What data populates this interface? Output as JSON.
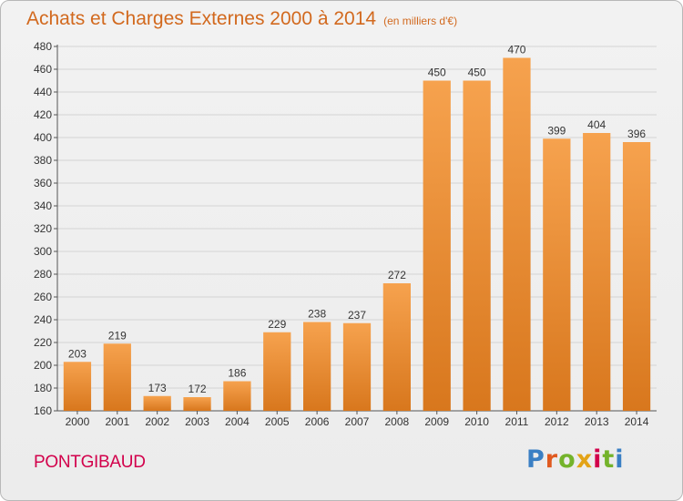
{
  "header": {
    "title": "Achats et Charges Externes 2000 à 2014",
    "subtitle": "(en milliers d'€)"
  },
  "footer": {
    "place": "PONTGIBAUD",
    "logo_letters": [
      "P",
      "r",
      "o",
      "x",
      "i",
      "t",
      "i"
    ],
    "logo_colors": [
      "#3a7fc4",
      "#e05a20",
      "#74b32b",
      "#e3a317",
      "#d2004b",
      "#74b32b",
      "#3a7fc4"
    ]
  },
  "colors": {
    "bar_light": "#f6a24e",
    "bar_dark": "#d8771d",
    "text": "#d2691e",
    "grid": "#d4d4d4"
  },
  "chart_data": {
    "type": "bar",
    "title": "Achats et Charges Externes 2000 à 2014",
    "subtitle": "(en milliers d'€)",
    "xlabel": "",
    "ylabel": "",
    "categories": [
      "2000",
      "2001",
      "2002",
      "2003",
      "2004",
      "2005",
      "2006",
      "2007",
      "2008",
      "2009",
      "2010",
      "2011",
      "2012",
      "2013",
      "2014"
    ],
    "values": [
      203,
      219,
      173,
      172,
      186,
      229,
      238,
      237,
      272,
      450,
      450,
      470,
      399,
      404,
      396
    ],
    "ylim": [
      160,
      480
    ],
    "yticks": [
      160,
      180,
      200,
      220,
      240,
      260,
      280,
      300,
      320,
      340,
      360,
      380,
      400,
      420,
      440,
      460,
      480
    ],
    "grid": true,
    "legend": "none"
  }
}
